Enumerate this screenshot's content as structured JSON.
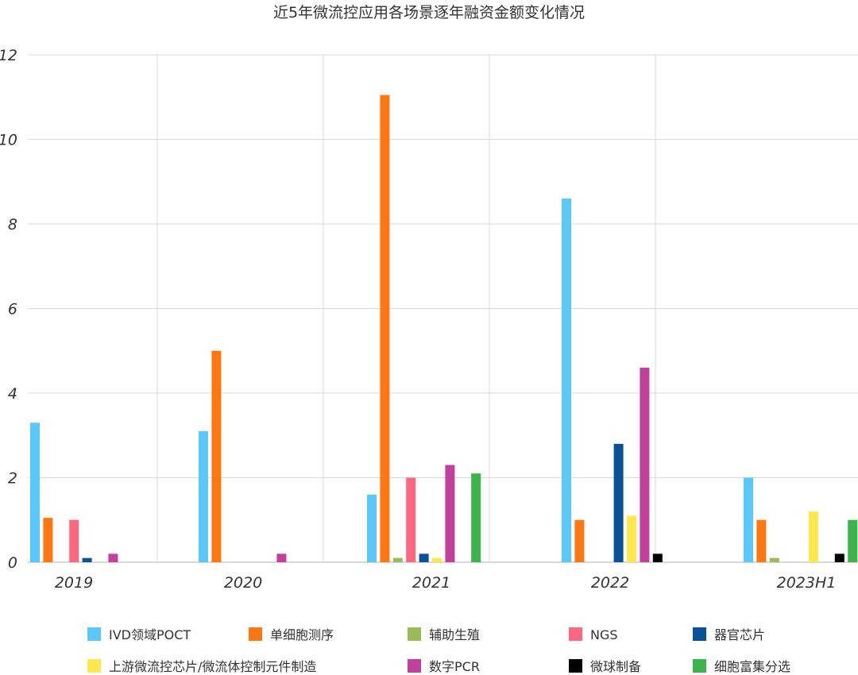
{
  "chart_data": {
    "type": "bar",
    "title": "近5年微流控应用各场景逐年融资金额变化情况",
    "xlabel": "",
    "ylabel": "",
    "ylim": [
      0,
      12
    ],
    "yticks": [
      0,
      2,
      4,
      6,
      8,
      10,
      12
    ],
    "categories": [
      "2019",
      "2020",
      "2021",
      "2022",
      "2023H1"
    ],
    "grid": true,
    "legend_position": "bottom",
    "series": [
      {
        "name": "IVD领域POCT",
        "color": "#5bc8fa",
        "values": [
          3.3,
          3.1,
          1.6,
          8.6,
          2.0
        ]
      },
      {
        "name": "单细胞测序",
        "color": "#ff7711",
        "values": [
          1.05,
          5.0,
          11.05,
          1.0,
          1.0
        ]
      },
      {
        "name": "辅助生殖",
        "color": "#9bbb59",
        "values": [
          0,
          0,
          0.1,
          0,
          0.1
        ]
      },
      {
        "name": "NGS",
        "color": "#ff6680",
        "values": [
          1.0,
          0,
          2.0,
          0,
          0
        ]
      },
      {
        "name": "器官芯片",
        "color": "#0a5298",
        "values": [
          0.1,
          0,
          0.2,
          2.8,
          0
        ]
      },
      {
        "name": "上游微流控芯片/微流体控制元件制造",
        "color": "#ffe74c",
        "values": [
          0,
          0,
          0.1,
          1.1,
          1.2
        ]
      },
      {
        "name": "数字PCR",
        "color": "#c0409c",
        "values": [
          0.2,
          0.2,
          2.3,
          4.6,
          0
        ]
      },
      {
        "name": "微球制备",
        "color": "#000000",
        "values": [
          0,
          0,
          0,
          0.2,
          0.2
        ]
      },
      {
        "name": "细胞富集分选",
        "color": "#3bb54a",
        "values": [
          0,
          0,
          2.1,
          0,
          1.0
        ]
      }
    ]
  }
}
